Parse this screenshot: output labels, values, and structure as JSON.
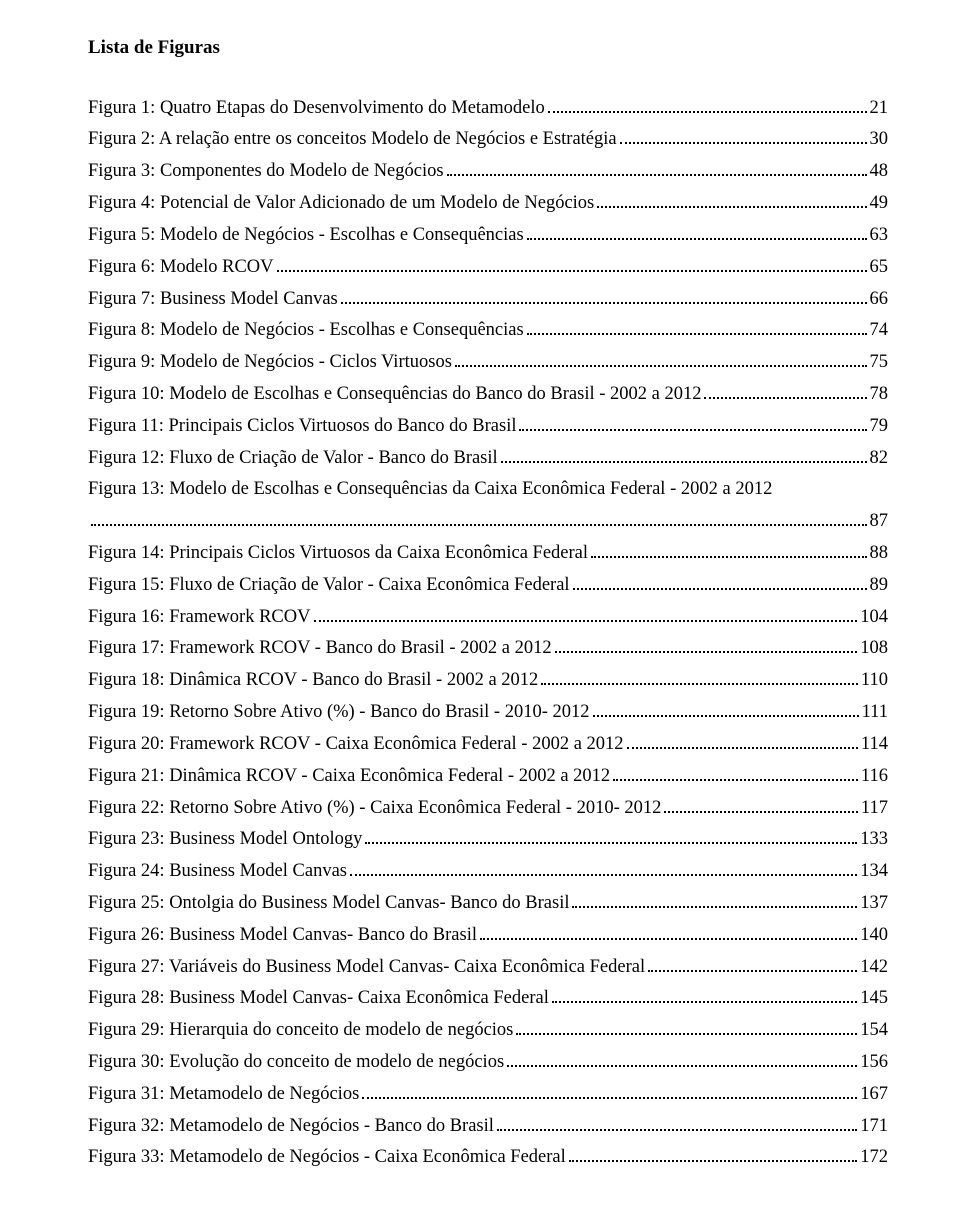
{
  "title": "Lista de Figuras",
  "font_family": "Times New Roman",
  "text_color": "#000000",
  "background_color": "#ffffff",
  "entries": [
    {
      "label": "Figura 1: Quatro Etapas do Desenvolvimento do Metamodelo",
      "page": "21"
    },
    {
      "label": "Figura 2: A relação entre os conceitos Modelo de Negócios e Estratégia",
      "page": "30"
    },
    {
      "label": "Figura 3: Componentes do Modelo de Negócios",
      "page": "48"
    },
    {
      "label": "Figura 4: Potencial de Valor Adicionado de um Modelo de Negócios",
      "page": "49"
    },
    {
      "label": "Figura 5: Modelo de Negócios - Escolhas e Consequências",
      "page": "63"
    },
    {
      "label": "Figura 6: Modelo RCOV",
      "page": "65"
    },
    {
      "label": "Figura 7: Business Model Canvas",
      "page": "66"
    },
    {
      "label": "Figura 8: Modelo de Negócios - Escolhas e Consequências",
      "page": "74"
    },
    {
      "label": "Figura 9: Modelo de Negócios - Ciclos Virtuosos",
      "page": "75"
    },
    {
      "label": "Figura 10: Modelo de Escolhas e Consequências do Banco do Brasil - 2002 a 2012",
      "page": "78"
    },
    {
      "label": "Figura 11: Principais Ciclos Virtuosos do Banco do Brasil",
      "page": "79"
    },
    {
      "label": "Figura 12: Fluxo de Criação de Valor - Banco do Brasil",
      "page": "82"
    },
    {
      "label": "Figura 13: Modelo de Escolhas e Consequências da Caixa Econômica Federal - 2002 a 2012",
      "page": "87",
      "wrap": true
    },
    {
      "label": "Figura 14: Principais Ciclos Virtuosos da Caixa Econômica Federal",
      "page": "88"
    },
    {
      "label": "Figura 15: Fluxo de Criação de Valor - Caixa Econômica Federal",
      "page": "89"
    },
    {
      "label": "Figura 16: Framework RCOV",
      "page": "104"
    },
    {
      "label": "Figura 17: Framework RCOV - Banco do Brasil - 2002 a 2012",
      "page": "108"
    },
    {
      "label": "Figura 18: Dinâmica RCOV - Banco do Brasil - 2002 a 2012",
      "page": "110"
    },
    {
      "label": "Figura 19: Retorno Sobre Ativo (%) - Banco do Brasil - 2010- 2012",
      "page": "111"
    },
    {
      "label": "Figura 20: Framework RCOV - Caixa Econômica Federal - 2002 a 2012",
      "page": "114"
    },
    {
      "label": "Figura 21: Dinâmica RCOV - Caixa Econômica Federal - 2002 a 2012",
      "page": "116"
    },
    {
      "label": "Figura 22: Retorno Sobre Ativo (%) - Caixa Econômica Federal - 2010- 2012",
      "page": "117"
    },
    {
      "label": "Figura 23: Business Model Ontology",
      "page": "133"
    },
    {
      "label": "Figura 24: Business Model Canvas",
      "page": "134"
    },
    {
      "label": "Figura 25: Ontolgia do Business Model Canvas- Banco do Brasil",
      "page": "137"
    },
    {
      "label": "Figura 26: Business Model Canvas- Banco do Brasil",
      "page": "140"
    },
    {
      "label": "Figura 27: Variáveis do Business Model Canvas- Caixa Econômica Federal",
      "page": "142"
    },
    {
      "label": "Figura 28: Business Model Canvas- Caixa Econômica Federal",
      "page": "145"
    },
    {
      "label": "Figura 29: Hierarquia do conceito de modelo de negócios",
      "page": "154"
    },
    {
      "label": "Figura 30: Evolução do conceito de modelo de negócios",
      "page": "156"
    },
    {
      "label": "Figura 31: Metamodelo de Negócios",
      "page": "167"
    },
    {
      "label": "Figura 32: Metamodelo de Negócios - Banco do Brasil",
      "page": "171"
    },
    {
      "label": "Figura 33: Metamodelo de Negócios - Caixa Econômica Federal",
      "page": "172"
    }
  ]
}
